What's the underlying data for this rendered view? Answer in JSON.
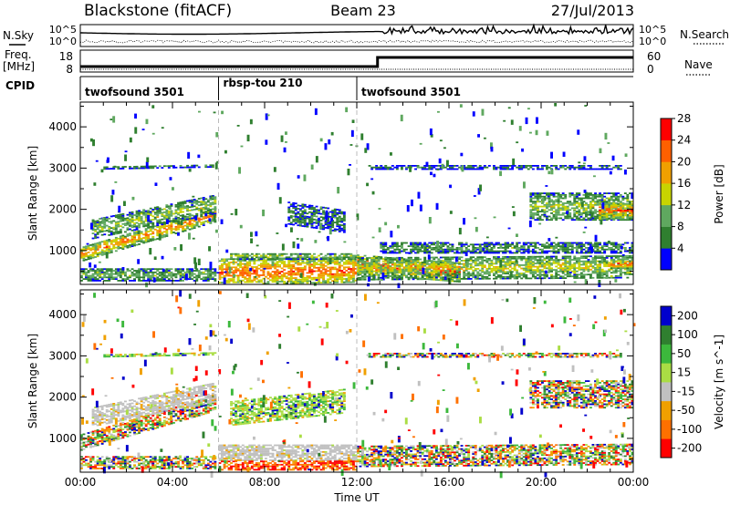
{
  "header": {
    "station": "Blackstone (fitACF)",
    "beam": "Beam 23",
    "date": "27/Jul/2013"
  },
  "noise_panel": {
    "left_label": "N.Sky",
    "right_label": "N.Search",
    "tick_top": "10^5",
    "tick_bottom": "10^0"
  },
  "freq_panel": {
    "left_label_line1": "Freq.",
    "left_label_line2": "[MHz]",
    "left_ticks": [
      "18",
      "8"
    ],
    "right_label": "Nave",
    "right_ticks": [
      "60",
      "0"
    ]
  },
  "cpid_panel": {
    "label": "CPID",
    "programs": [
      {
        "name": "twofsound 3501",
        "start_hour": 0,
        "end_hour": 6
      },
      {
        "name": "rbsp-tou 210",
        "start_hour": 6,
        "end_hour": 12
      },
      {
        "name": "twofsound 3501",
        "start_hour": 12,
        "end_hour": 24
      }
    ]
  },
  "chart_data": [
    {
      "type": "heatmap",
      "title": "",
      "xlabel": "",
      "ylabel": "Slant Range [km]",
      "xlim": [
        0,
        24
      ],
      "ylim": [
        180,
        4600
      ],
      "yticks": [
        1000,
        2000,
        3000,
        4000
      ],
      "colorbar_label": "Power [dB]",
      "colorbar_ticks": [
        "4",
        "8",
        "12",
        "16",
        "20",
        "24",
        "28"
      ],
      "colorbar_range": [
        0,
        32
      ],
      "colors": [
        "#0000ff",
        "#2f7f2f",
        "#5fa85f",
        "#c8d400",
        "#f0a000",
        "#ff6000",
        "#ff0000"
      ],
      "echo_regions": [
        {
          "x0": 0.0,
          "x1": 5.9,
          "y_start": 900,
          "y_end": 1850,
          "thickness": 350,
          "level": 20
        },
        {
          "x0": 0.5,
          "x1": 5.9,
          "y_start": 1500,
          "y_end": 2100,
          "thickness": 450,
          "level": 12
        },
        {
          "x0": 1.0,
          "x1": 5.9,
          "y_start": 3000,
          "y_end": 3050,
          "thickness": 80,
          "level": 6
        },
        {
          "x0": 0.0,
          "x1": 5.9,
          "y_start": 400,
          "y_end": 400,
          "thickness": 300,
          "level": 10
        },
        {
          "x0": 6.0,
          "x1": 12.0,
          "y_start": 450,
          "y_end": 500,
          "thickness": 650,
          "level": 22
        },
        {
          "x0": 6.5,
          "x1": 12.0,
          "y_start": 850,
          "y_end": 850,
          "thickness": 150,
          "level": 12
        },
        {
          "x0": 9.0,
          "x1": 11.5,
          "y_start": 1900,
          "y_end": 1700,
          "thickness": 550,
          "level": 6
        },
        {
          "x0": 12.0,
          "x1": 16.5,
          "y_start": 650,
          "y_end": 450,
          "thickness": 450,
          "level": 24
        },
        {
          "x0": 12.0,
          "x1": 24.0,
          "y_start": 550,
          "y_end": 600,
          "thickness": 550,
          "level": 14
        },
        {
          "x0": 13.0,
          "x1": 24.0,
          "y_start": 1050,
          "y_end": 1050,
          "thickness": 250,
          "level": 8
        },
        {
          "x0": 12.5,
          "x1": 23.5,
          "y_start": 3000,
          "y_end": 3000,
          "thickness": 90,
          "level": 5
        },
        {
          "x0": 19.5,
          "x1": 24.0,
          "y_start": 2050,
          "y_end": 2050,
          "thickness": 650,
          "level": 12
        },
        {
          "x0": 22.5,
          "x1": 24.0,
          "y_start": 1950,
          "y_end": 1950,
          "thickness": 400,
          "level": 22
        },
        {
          "x0": 23.0,
          "x1": 24.0,
          "y_start": 650,
          "y_end": 650,
          "thickness": 200,
          "level": 24
        }
      ]
    },
    {
      "type": "heatmap",
      "title": "",
      "xlabel": "Time UT",
      "ylabel": "Slant Range [km]",
      "xlim": [
        0,
        24
      ],
      "ylim": [
        180,
        4600
      ],
      "yticks": [
        1000,
        2000,
        3000,
        4000
      ],
      "xticks": [
        "00:00",
        "04:00",
        "08:00",
        "12:00",
        "16:00",
        "20:00",
        "00:00"
      ],
      "colorbar_label": "Velocity [m s^-1]",
      "colorbar_ticks": [
        "200",
        "100",
        "50",
        "15",
        "-15",
        "-50",
        "-100",
        "-200"
      ],
      "colors": [
        "#0000cc",
        "#2f7f2f",
        "#3cb83c",
        "#aadd44",
        "#c0c0c0",
        "#f0a000",
        "#ff7000",
        "#ff0000"
      ],
      "echo_regions": [
        {
          "x0": 0.0,
          "x1": 5.9,
          "y_start": 900,
          "y_end": 1850,
          "thickness": 400,
          "class": "mixed"
        },
        {
          "x0": 0.5,
          "x1": 5.9,
          "y_start": 1500,
          "y_end": 2100,
          "thickness": 450,
          "class": "ground"
        },
        {
          "x0": 1.0,
          "x1": 5.9,
          "y_start": 3000,
          "y_end": 3050,
          "thickness": 80,
          "class": "positive"
        },
        {
          "x0": 0.0,
          "x1": 5.9,
          "y_start": 400,
          "y_end": 400,
          "thickness": 300,
          "class": "mixed"
        },
        {
          "x0": 6.0,
          "x1": 12.0,
          "y_start": 650,
          "y_end": 650,
          "thickness": 400,
          "class": "ground"
        },
        {
          "x0": 6.0,
          "x1": 12.0,
          "y_start": 330,
          "y_end": 330,
          "thickness": 220,
          "class": "negative"
        },
        {
          "x0": 6.5,
          "x1": 11.5,
          "y_start": 1600,
          "y_end": 1900,
          "thickness": 600,
          "class": "positive"
        },
        {
          "x0": 12.0,
          "x1": 24.0,
          "y_start": 550,
          "y_end": 600,
          "thickness": 500,
          "class": "mixed"
        },
        {
          "x0": 12.5,
          "x1": 23.5,
          "y_start": 3000,
          "y_end": 3000,
          "thickness": 90,
          "class": "mixed"
        },
        {
          "x0": 19.5,
          "x1": 24.0,
          "y_start": 2050,
          "y_end": 2050,
          "thickness": 650,
          "class": "mixed"
        }
      ]
    }
  ]
}
